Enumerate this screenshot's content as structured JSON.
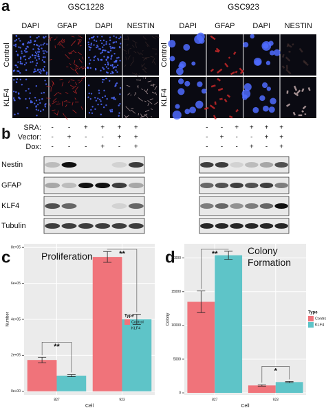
{
  "panel_a": {
    "label": "a",
    "groups": [
      {
        "title": "GSC1228",
        "columns": [
          "DAPI",
          "GFAP",
          "DAPI",
          "NESTIN"
        ],
        "rows": [
          "Control",
          "KLF4"
        ]
      },
      {
        "title": "GSC923",
        "columns": [
          "DAPI",
          "GFAP",
          "DAPI",
          "NESTIN"
        ],
        "rows": [
          "Control",
          "KLF4"
        ]
      }
    ]
  },
  "panel_b": {
    "label": "b",
    "conditions": [
      "SRA:",
      "Vector:",
      "Dox:"
    ],
    "proteins": [
      "Nestin",
      "GFAP",
      "KLF4",
      "Tubulin"
    ],
    "blots": [
      {
        "signs": [
          [
            "-",
            "-",
            "+",
            "+",
            "+",
            "+"
          ],
          [
            "-",
            "+",
            "-",
            "-",
            "+",
            "+"
          ],
          [
            "-",
            "-",
            "-",
            "+",
            "-",
            "+"
          ]
        ]
      },
      {
        "signs": [
          [
            "-",
            "-",
            "+",
            "+",
            "+",
            "+"
          ],
          [
            "-",
            "+",
            "-",
            "-",
            "+",
            "+"
          ],
          [
            "-",
            "-",
            "-",
            "+",
            "-",
            "+"
          ]
        ]
      }
    ]
  },
  "chart_data": [
    {
      "type": "bar",
      "panel_label": "c",
      "title": "Proliferation",
      "x_label": "Cell",
      "y_label": "Number",
      "categories": [
        "827",
        "923"
      ],
      "series": [
        {
          "name": "Control",
          "color": "#f0737a",
          "values": [
            174000,
            747000
          ],
          "errors": [
            15000,
            30000
          ]
        },
        {
          "name": "KLF4",
          "color": "#5ec4c8",
          "values": [
            87000,
            400000
          ],
          "errors": [
            6000,
            28000
          ]
        }
      ],
      "annotations": [
        "**",
        "**"
      ],
      "ylim": [
        -20000,
        820000
      ],
      "yticks": [
        {
          "value": 0,
          "label": "0e+00"
        },
        {
          "value": 200000,
          "label": "2e+05"
        },
        {
          "value": 400000,
          "label": "4e+05"
        },
        {
          "value": 600000,
          "label": "6e+05"
        },
        {
          "value": 800000,
          "label": "8e+05"
        }
      ],
      "legend_title": "Type",
      "grid": true
    },
    {
      "type": "bar",
      "panel_label": "d",
      "title": "Colony Formation",
      "x_label": "Cell",
      "y_label": "Colony",
      "categories": [
        "827",
        "923"
      ],
      "series": [
        {
          "name": "Control",
          "color": "#f0737a",
          "values": [
            13500,
            1100
          ],
          "errors": [
            1600,
            100
          ]
        },
        {
          "name": "KLF4",
          "color": "#5ec4c8",
          "values": [
            20400,
            1600
          ],
          "errors": [
            600,
            100
          ]
        }
      ],
      "annotations": [
        "**",
        "*"
      ],
      "ylim": [
        -300,
        22100
      ],
      "yticks": [
        0,
        5000,
        10000,
        15000,
        20000
      ],
      "legend_title": "Type",
      "grid": true
    }
  ]
}
